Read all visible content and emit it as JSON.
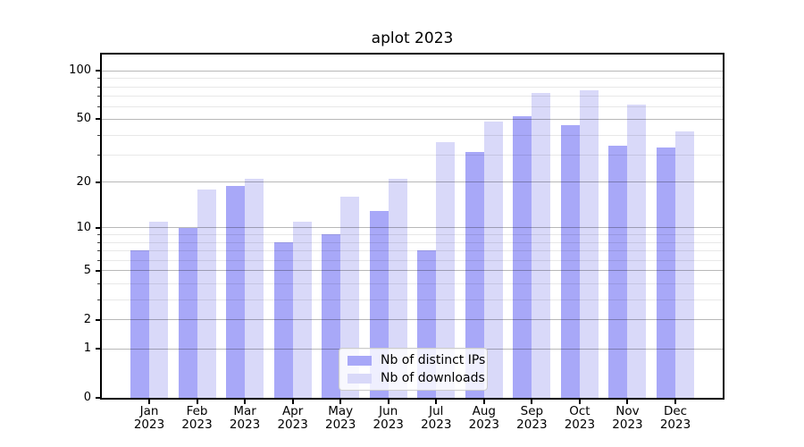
{
  "chart_data": {
    "type": "bar",
    "title": "aplot 2023",
    "categories": [
      "Jan",
      "Feb",
      "Mar",
      "Apr",
      "May",
      "Jun",
      "Jul",
      "Aug",
      "Sep",
      "Oct",
      "Nov",
      "Dec"
    ],
    "x_year_label": "2023",
    "series": [
      {
        "name": "Nb of distinct IPs",
        "color": "#a8a8f8",
        "values": [
          7,
          10,
          19,
          8,
          9,
          13,
          7,
          31,
          52,
          46,
          34,
          33
        ]
      },
      {
        "name": "Nb of downloads",
        "color": "#d9d9f9",
        "values": [
          11,
          18,
          21,
          11,
          16,
          21,
          36,
          48,
          73,
          76,
          62,
          42
        ]
      }
    ],
    "yscale": "log1p",
    "yticks": [
      0,
      1,
      2,
      5,
      10,
      20,
      50,
      100
    ],
    "yticks_minor": [
      3,
      4,
      6,
      7,
      8,
      9,
      30,
      40,
      60,
      70,
      80,
      90
    ],
    "ylim": [
      0,
      126
    ],
    "grid": "both",
    "legend_position": "lower-center",
    "colors": {
      "bar_dark": "#a8a8f8",
      "bar_light": "#d9d9f9",
      "grid_major": "#b8b8b8",
      "grid_minor": "#e8e8e8",
      "spine": "#000000"
    }
  }
}
